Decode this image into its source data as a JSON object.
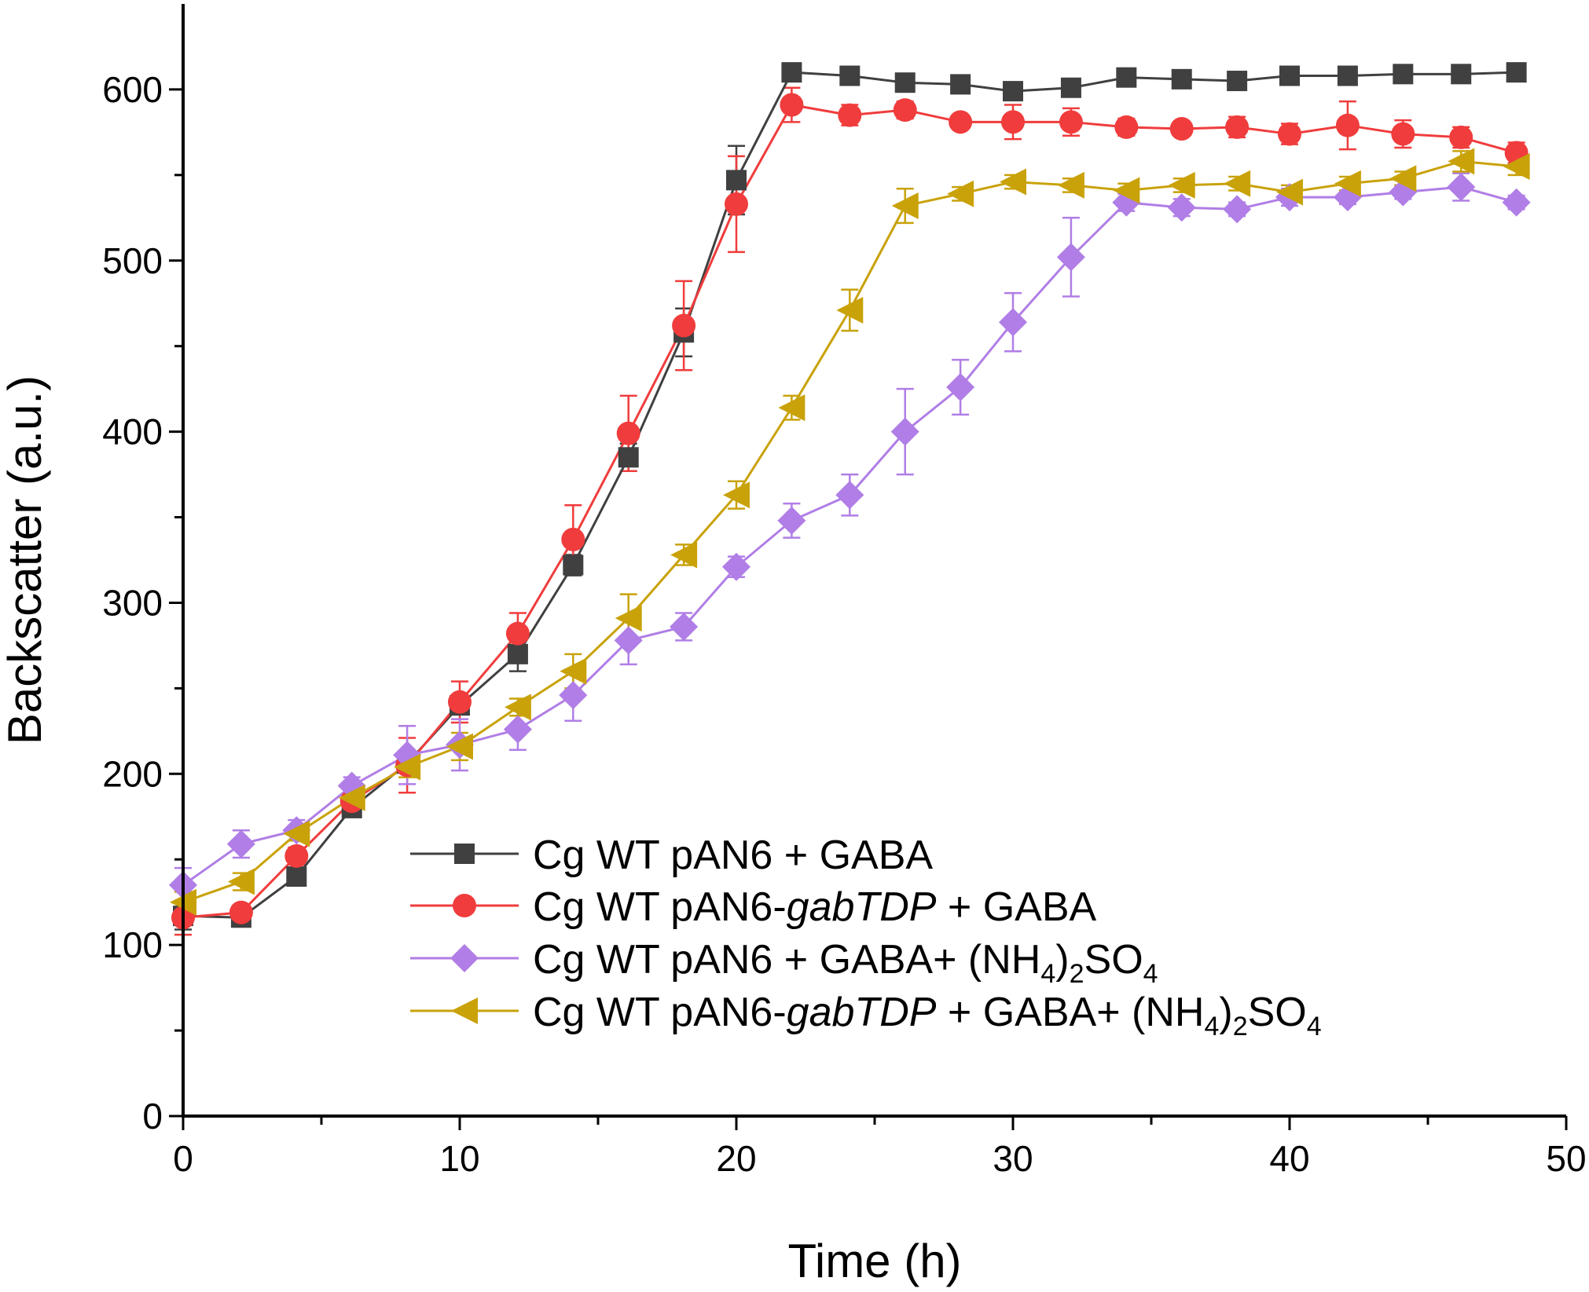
{
  "chart_data": {
    "type": "line",
    "title": "",
    "xlabel": "Time (h)",
    "ylabel": "Backscatter (a.u.)",
    "xlim": [
      0,
      50
    ],
    "ylim": [
      0,
      650
    ],
    "xticks": [
      0,
      10,
      20,
      30,
      40,
      50
    ],
    "yticks": [
      0,
      100,
      200,
      300,
      400,
      500,
      600
    ],
    "xtick_labels": [
      "0",
      "10",
      "20",
      "30",
      "40",
      "50"
    ],
    "ytick_labels": [
      "0",
      "100",
      "200",
      "300",
      "400",
      "500",
      "600"
    ],
    "grid": false,
    "legend_position": "bottom-right",
    "x": [
      0,
      2.1,
      4.1,
      6.1,
      8.1,
      10.0,
      12.1,
      14.1,
      16.1,
      18.1,
      20.0,
      22.0,
      24.1,
      26.1,
      28.1,
      30.0,
      32.1,
      34.1,
      36.1,
      38.1,
      40.0,
      42.1,
      44.1,
      46.2,
      48.2
    ],
    "series": [
      {
        "name": "Cg WT pAN6 + GABA",
        "legend": {
          "pre": "Cg WT pAN6 + GABA",
          "ital": "",
          "post": "",
          "formula": ""
        },
        "color": "#404040",
        "marker": "square",
        "values": [
          117,
          116,
          140,
          180,
          206,
          240,
          270,
          322,
          385,
          458,
          547,
          610,
          608,
          604,
          603,
          599,
          601,
          607,
          606,
          605,
          608,
          608,
          609,
          609,
          610
        ],
        "errors": [
          8,
          3,
          3,
          4,
          5,
          5,
          10,
          6,
          8,
          14,
          20,
          3,
          2,
          2,
          2,
          2,
          2,
          2,
          2,
          2,
          2,
          2,
          2,
          2,
          2
        ]
      },
      {
        "name": "Cg WT pAN6-gabTDP + GABA",
        "legend": {
          "pre": "Cg WT pAN6-",
          "ital": "gabTDP",
          "post": " + GABA",
          "formula": ""
        },
        "color": "#f03c3c",
        "marker": "circle",
        "values": [
          116,
          119,
          152,
          184,
          205,
          242,
          282,
          337,
          399,
          462,
          533,
          591,
          585,
          588,
          581,
          581,
          581,
          578,
          577,
          578,
          574,
          579,
          574,
          572,
          563
        ],
        "errors": [
          10,
          4,
          5,
          4,
          16,
          12,
          12,
          20,
          22,
          26,
          28,
          10,
          6,
          5,
          4,
          10,
          8,
          5,
          4,
          6,
          6,
          14,
          8,
          6,
          6
        ]
      },
      {
        "name": "Cg WT pAN6 + GABA+ (NH4)2SO4",
        "legend": {
          "pre": "Cg WT pAN6 + GABA+ ",
          "ital": "",
          "post": "",
          "formula": "(NH4)2SO4"
        },
        "color": "#b07ee6",
        "marker": "diamond",
        "values": [
          135,
          159,
          167,
          193,
          211,
          217,
          226,
          246,
          278,
          286,
          321,
          348,
          363,
          400,
          426,
          464,
          502,
          534,
          531,
          530,
          537,
          537,
          540,
          543,
          534
        ],
        "errors": [
          10,
          8,
          6,
          5,
          17,
          15,
          12,
          15,
          14,
          8,
          6,
          10,
          12,
          25,
          16,
          17,
          23,
          5,
          5,
          4,
          5,
          4,
          4,
          8,
          4
        ]
      },
      {
        "name": "Cg WT pAN6-gabTDP + GABA+ (NH4)2SO4",
        "legend": {
          "pre": "Cg WT pAN6-",
          "ital": "gabTDP",
          "post": " + GABA+ ",
          "formula": "(NH4)2SO4"
        },
        "color": "#c9a20a",
        "marker": "triangle-left",
        "values": [
          125,
          137,
          165,
          186,
          204,
          216,
          239,
          260,
          291,
          328,
          363,
          414,
          471,
          532,
          539,
          546,
          544,
          541,
          544,
          545,
          540,
          545,
          548,
          558,
          555
        ],
        "errors": [
          6,
          5,
          4,
          5,
          6,
          8,
          5,
          10,
          14,
          6,
          8,
          7,
          12,
          10,
          4,
          4,
          4,
          4,
          4,
          4,
          4,
          4,
          4,
          6,
          5
        ]
      }
    ]
  }
}
